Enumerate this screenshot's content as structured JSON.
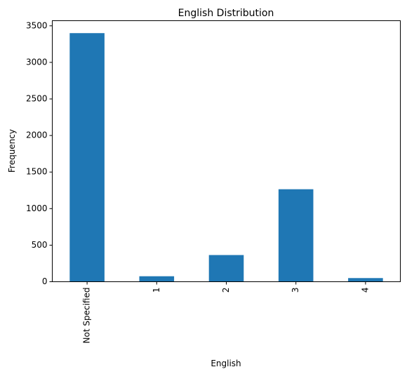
{
  "chart_data": {
    "type": "bar",
    "title": "English Distribution",
    "xlabel": "English",
    "ylabel": "Frequency",
    "categories": [
      "Not Specified",
      "1",
      "2",
      "3",
      "4"
    ],
    "values": [
      3400,
      75,
      365,
      1265,
      50
    ],
    "ylim": [
      0,
      3570
    ],
    "yticks": [
      "0",
      "500",
      "1000",
      "1500",
      "2000",
      "2500",
      "3000",
      "3500"
    ],
    "ytick_values": [
      0,
      500,
      1000,
      1500,
      2000,
      2500,
      3000,
      3500
    ],
    "bar_color": "#1f77b4",
    "grid": false,
    "legend": "none"
  }
}
